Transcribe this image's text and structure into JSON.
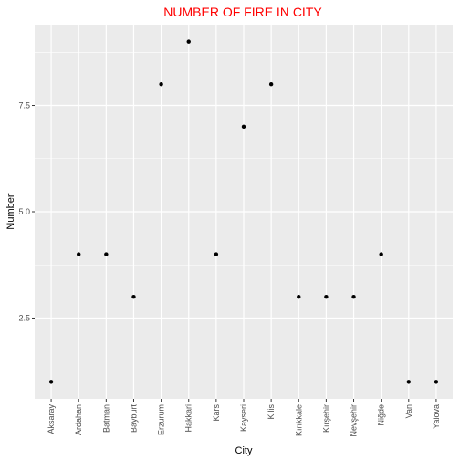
{
  "chart_data": {
    "type": "scatter",
    "title": "NUMBER OF FIRE IN CITY",
    "xlabel": "City",
    "ylabel": "Number",
    "categories": [
      "Aksaray",
      "Ardahan",
      "Batman",
      "Bayburt",
      "Erzurum",
      "Hakkari",
      "Kars",
      "Kayseri",
      "Kilis",
      "Kırıkkale",
      "Kırşehir",
      "Nevşehir",
      "Niğde",
      "Van",
      "Yalova"
    ],
    "values": [
      1,
      4,
      4,
      3,
      8,
      9,
      4,
      7,
      8,
      3,
      3,
      3,
      4,
      1,
      1
    ],
    "yticks": [
      2.5,
      5.0,
      7.5
    ],
    "ytick_labels": [
      "2.5",
      "5.0",
      "7.5"
    ],
    "ylim": [
      0.6,
      9.4
    ],
    "grid": true,
    "colors": {
      "title": "#ff0000",
      "panel": "#ebebeb",
      "grid": "#ffffff",
      "point": "#000000"
    }
  }
}
